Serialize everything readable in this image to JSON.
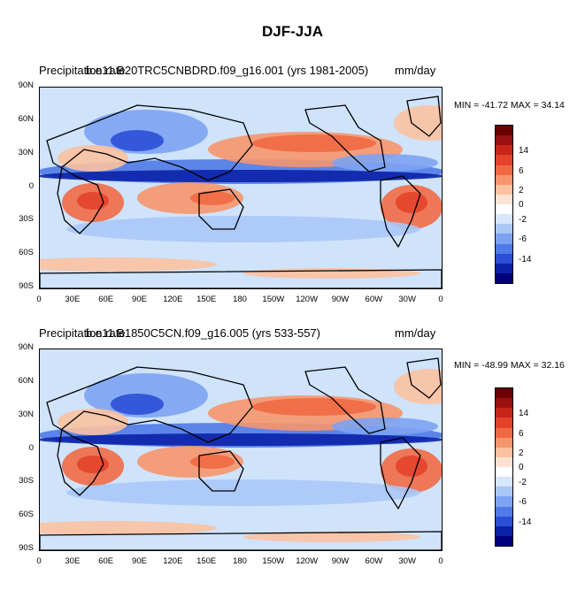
{
  "title": "DJF-JJA",
  "palette": [
    "#00007a",
    "#0b22a8",
    "#2a4fd6",
    "#4f7ae8",
    "#7ca3f2",
    "#a9c7f7",
    "#d6e6fb",
    "#ffffff",
    "#fde3d4",
    "#fbc1a0",
    "#f6956d",
    "#ef6a44",
    "#e2432a",
    "#c6261a",
    "#9b1010",
    "#6a0000"
  ],
  "colorbar_labels": [
    "14",
    "6",
    "2",
    "0",
    "-2",
    "-6",
    "-14"
  ],
  "lat_labels": [
    "90N",
    "60N",
    "30N",
    "0",
    "30S",
    "60S",
    "90S"
  ],
  "lon_labels": [
    "0",
    "30E",
    "60E",
    "90E",
    "120E",
    "150E",
    "180",
    "150W",
    "120W",
    "90W",
    "60W",
    "30W",
    "0"
  ],
  "panels": [
    {
      "title_left": "Precipitation rate",
      "title_case": "b.e11.B20TRC5CNBDRD.f09_g16.001 (yrs 1981-2005)",
      "units": "mm/day",
      "minmax": "MIN = -41.72 MAX =  34.14"
    },
    {
      "title_left": "Precipitation rate",
      "title_case": "b.e11.B1850C5CN.f09_g16.005 (yrs 533-557)",
      "units": "mm/day",
      "minmax": "MIN = -48.99 MAX =  32.16"
    }
  ]
}
